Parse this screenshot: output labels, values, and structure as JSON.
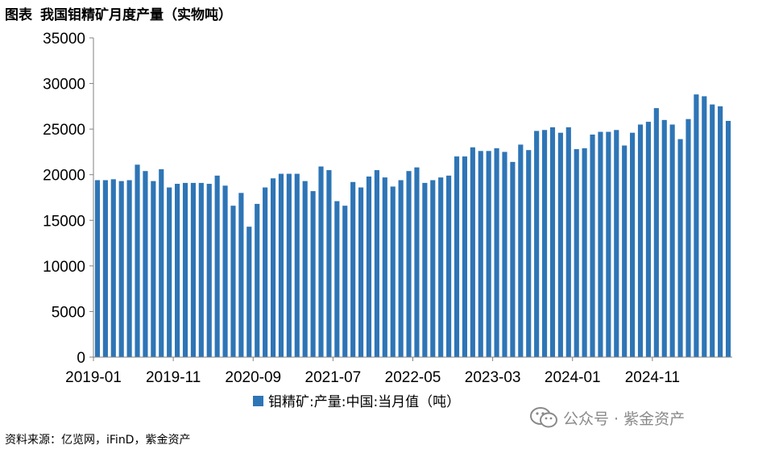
{
  "header": {
    "label": "图表",
    "title": "我国钼精矿月度产量（实物吨）"
  },
  "chart_data": {
    "type": "bar",
    "color": "#2e75b6",
    "ylim": [
      0,
      35000
    ],
    "yticks": [
      "0",
      "5000",
      "10000",
      "15000",
      "20000",
      "25000",
      "30000",
      "35000"
    ],
    "xtick_labels": [
      {
        "label": "2019-01",
        "index": 0
      },
      {
        "label": "2019-11",
        "index": 10
      },
      {
        "label": "2020-09",
        "index": 20
      },
      {
        "label": "2021-07",
        "index": 30
      },
      {
        "label": "2022-05",
        "index": 40
      },
      {
        "label": "2023-03",
        "index": 50
      },
      {
        "label": "2024-01",
        "index": 60
      },
      {
        "label": "2024-11",
        "index": 70
      }
    ],
    "legend_position": "bottom",
    "series": [
      {
        "name": "钼精矿:产量:中国:当月值（吨）",
        "values": [
          19400,
          19400,
          19500,
          19300,
          19400,
          21100,
          20400,
          19300,
          20600,
          18600,
          19000,
          19100,
          19100,
          19100,
          19000,
          19900,
          18800,
          16600,
          18000,
          14300,
          16800,
          18600,
          19600,
          20100,
          20100,
          20100,
          19300,
          18200,
          20900,
          20500,
          17100,
          16600,
          19200,
          18600,
          19800,
          20500,
          19700,
          18700,
          19400,
          20400,
          20800,
          19100,
          19400,
          19700,
          19900,
          22000,
          22000,
          23000,
          22600,
          22600,
          22900,
          22500,
          21400,
          23300,
          22700,
          24800,
          24900,
          25200,
          24600,
          25200,
          22800,
          22900,
          24400,
          24700,
          24700,
          24900,
          23200,
          24600,
          25500,
          25800,
          27300,
          26000,
          25500,
          23900,
          26100,
          28800,
          28600,
          27700,
          27500,
          25900
        ]
      }
    ]
  },
  "source": "资料来源：亿览网，iFinD，紫金资产",
  "watermark": {
    "logo_icon": "wechat-icon",
    "text": "公众号 · 紫金资产"
  }
}
